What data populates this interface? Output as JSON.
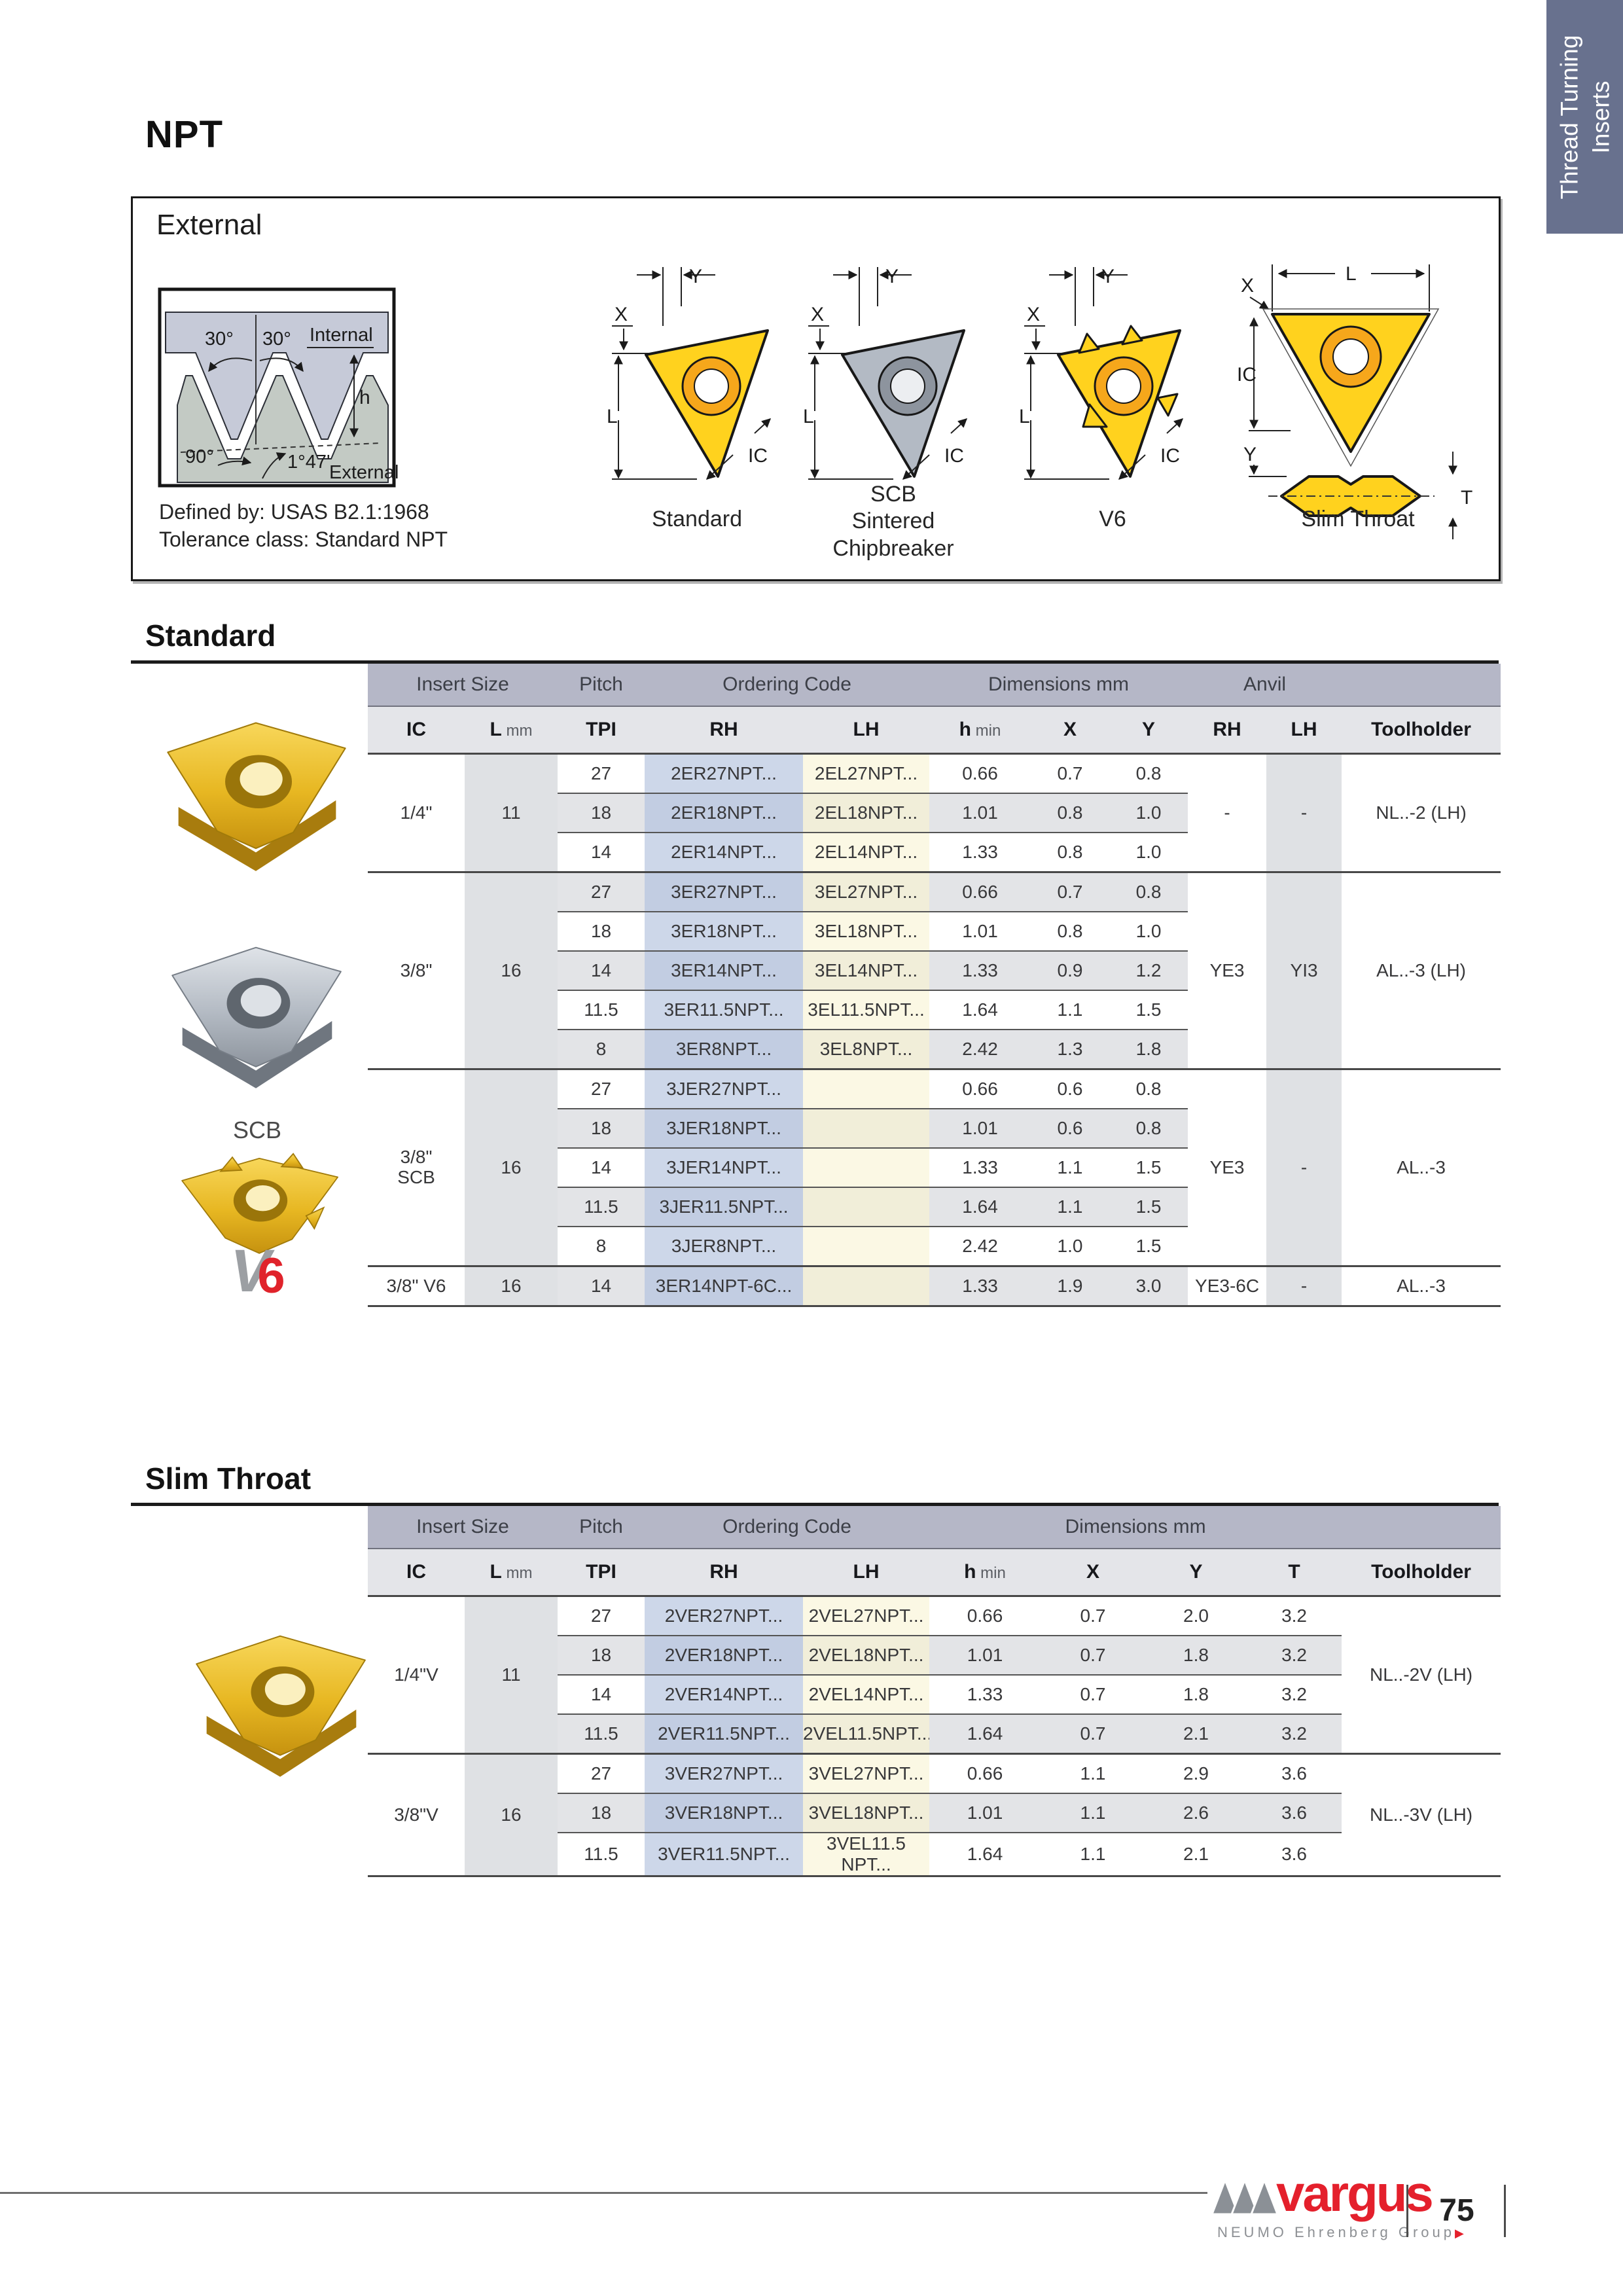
{
  "page": {
    "title": "NPT"
  },
  "side_tab": {
    "line1": "Thread Turning",
    "line2": "Inserts"
  },
  "colors": {
    "accent_red": "#e4202c",
    "tab_bg": "#68718e",
    "header_band": "#b5b7c7",
    "rh_column": "#cdd7e9",
    "lh_column": "#fbf8e4",
    "insert_gold": "#ffd21e"
  },
  "dims": {
    "x": "X",
    "y": "Y",
    "l": "L",
    "ic": "IC",
    "t": "T",
    "h": "h"
  },
  "external": {
    "label": "External",
    "defined_by": "Defined by: USAS B2.1:1968\nTolerance class: Standard NPT",
    "profile": {
      "angle_left": "30°",
      "angle_right": "30°",
      "height": "h",
      "internal": "Internal",
      "angle_90": "90°",
      "angle_taper": "1°47'",
      "external": "External"
    },
    "diagram_labels": {
      "standard": "Standard",
      "scb": "SCB\nSintered\nChipbreaker",
      "v6": "V6",
      "slim": "Slim Throat"
    }
  },
  "photo_labels": {
    "scb": "SCB",
    "v6_v": "V",
    "v6_6": "6"
  },
  "standard_table": {
    "heading": "Standard",
    "header_groups": [
      {
        "label": "Insert Size",
        "span": 2
      },
      {
        "label": "Pitch",
        "span": 1
      },
      {
        "label": "Ordering Code",
        "span": 2
      },
      {
        "label": "Dimensions mm",
        "span": 3
      },
      {
        "label": "Anvil",
        "span": 2
      },
      {
        "label": "",
        "span": 1
      }
    ],
    "columns": [
      {
        "label": "IC"
      },
      {
        "label": "L",
        "unit": "mm"
      },
      {
        "label": "TPI"
      },
      {
        "label": "RH"
      },
      {
        "label": "LH"
      },
      {
        "label": "h",
        "unit": "min"
      },
      {
        "label": "X"
      },
      {
        "label": "Y"
      },
      {
        "label": "RH"
      },
      {
        "label": "LH"
      },
      {
        "label": "Toolholder"
      }
    ],
    "groups": [
      {
        "ic": "1/4\"",
        "l": "11",
        "anvil_rh": "-",
        "anvil_lh": "-",
        "toolholder": "NL..-2 (LH)",
        "rows": [
          [
            "27",
            "2ER27NPT...",
            "2EL27NPT...",
            "0.66",
            "0.7",
            "0.8"
          ],
          [
            "18",
            "2ER18NPT...",
            "2EL18NPT...",
            "1.01",
            "0.8",
            "1.0"
          ],
          [
            "14",
            "2ER14NPT...",
            "2EL14NPT...",
            "1.33",
            "0.8",
            "1.0"
          ]
        ]
      },
      {
        "ic": "3/8\"",
        "l": "16",
        "anvil_rh": "YE3",
        "anvil_lh": "YI3",
        "toolholder": "AL..-3 (LH)",
        "rows": [
          [
            "27",
            "3ER27NPT...",
            "3EL27NPT...",
            "0.66",
            "0.7",
            "0.8"
          ],
          [
            "18",
            "3ER18NPT...",
            "3EL18NPT...",
            "1.01",
            "0.8",
            "1.0"
          ],
          [
            "14",
            "3ER14NPT...",
            "3EL14NPT...",
            "1.33",
            "0.9",
            "1.2"
          ],
          [
            "11.5",
            "3ER11.5NPT...",
            "3EL11.5NPT...",
            "1.64",
            "1.1",
            "1.5"
          ],
          [
            "8",
            "3ER8NPT...",
            "3EL8NPT...",
            "2.42",
            "1.3",
            "1.8"
          ]
        ]
      },
      {
        "ic": "3/8\"\nSCB",
        "l": "16",
        "anvil_rh": "YE3",
        "anvil_lh": "-",
        "toolholder": "AL..-3",
        "rows": [
          [
            "27",
            "3JER27NPT...",
            "",
            "0.66",
            "0.6",
            "0.8"
          ],
          [
            "18",
            "3JER18NPT...",
            "",
            "1.01",
            "0.6",
            "0.8"
          ],
          [
            "14",
            "3JER14NPT...",
            "",
            "1.33",
            "1.1",
            "1.5"
          ],
          [
            "11.5",
            "3JER11.5NPT...",
            "",
            "1.64",
            "1.1",
            "1.5"
          ],
          [
            "8",
            "3JER8NPT...",
            "",
            "2.42",
            "1.0",
            "1.5"
          ]
        ]
      },
      {
        "ic": "3/8\" V6",
        "l": "16",
        "anvil_rh": "YE3-6C",
        "anvil_lh": "-",
        "toolholder": "AL..-3",
        "rows": [
          [
            "14",
            "3ER14NPT-6C...",
            "",
            "1.33",
            "1.9",
            "3.0"
          ]
        ]
      }
    ]
  },
  "slim_table": {
    "heading": "Slim Throat",
    "header_groups": [
      {
        "label": "Insert Size",
        "span": 2
      },
      {
        "label": "Pitch",
        "span": 1
      },
      {
        "label": "Ordering Code",
        "span": 2
      },
      {
        "label": "Dimensions mm",
        "span": 4
      },
      {
        "label": "",
        "span": 1
      }
    ],
    "columns": [
      {
        "label": "IC"
      },
      {
        "label": "L",
        "unit": "mm"
      },
      {
        "label": "TPI"
      },
      {
        "label": "RH"
      },
      {
        "label": "LH"
      },
      {
        "label": "h",
        "unit": "min"
      },
      {
        "label": "X"
      },
      {
        "label": "Y"
      },
      {
        "label": "T"
      },
      {
        "label": "Toolholder"
      }
    ],
    "groups": [
      {
        "ic": "1/4\"V",
        "l": "11",
        "toolholder": "NL..-2V (LH)",
        "rows": [
          [
            "27",
            "2VER27NPT...",
            "2VEL27NPT...",
            "0.66",
            "0.7",
            "2.0",
            "3.2"
          ],
          [
            "18",
            "2VER18NPT...",
            "2VEL18NPT...",
            "1.01",
            "0.7",
            "1.8",
            "3.2"
          ],
          [
            "14",
            "2VER14NPT...",
            "2VEL14NPT...",
            "1.33",
            "0.7",
            "1.8",
            "3.2"
          ],
          [
            "11.5",
            "2VER11.5NPT...",
            "2VEL11.5NPT...",
            "1.64",
            "0.7",
            "2.1",
            "3.2"
          ]
        ]
      },
      {
        "ic": "3/8\"V",
        "l": "16",
        "toolholder": "NL..-3V (LH)",
        "rows": [
          [
            "27",
            "3VER27NPT...",
            "3VEL27NPT...",
            "0.66",
            "1.1",
            "2.9",
            "3.6"
          ],
          [
            "18",
            "3VER18NPT...",
            "3VEL18NPT...",
            "1.01",
            "1.1",
            "2.6",
            "3.6"
          ],
          [
            "11.5",
            "3VER11.5NPT...",
            "3VEL11.5 NPT...",
            "1.64",
            "1.1",
            "2.1",
            "3.6"
          ]
        ]
      }
    ]
  },
  "footer": {
    "brand": "vargus",
    "tagline": "NEUMO Ehrenberg Group",
    "page": "75"
  }
}
